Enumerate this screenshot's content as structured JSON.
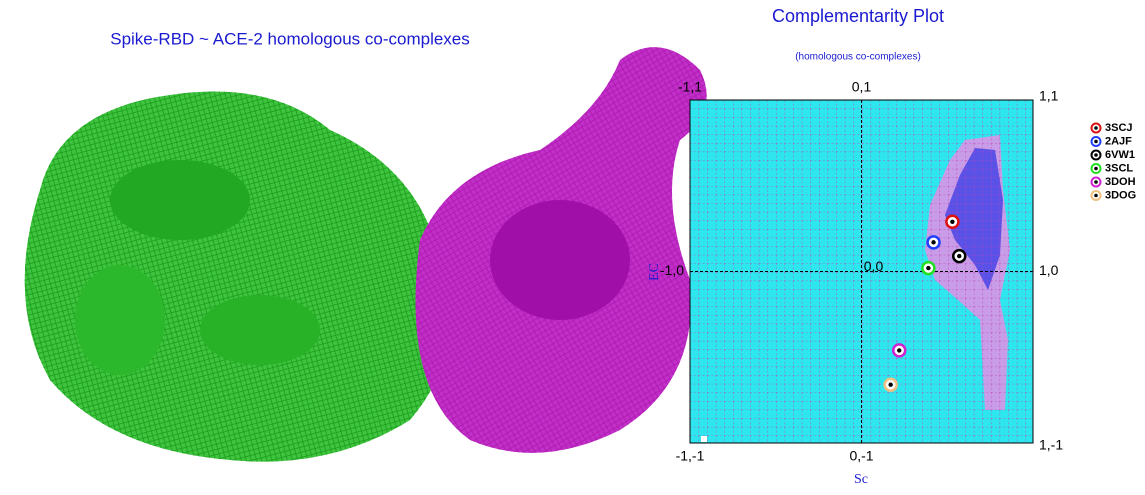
{
  "illustration": {
    "title": "Spike-RBD ~ ACE-2 homologous co-complexes"
  },
  "chart_data": {
    "type": "scatter",
    "title": "Complementarity Plot",
    "subtitle": "(homologous co-complexes)",
    "xlabel": "Sc",
    "ylabel": "EC",
    "xlim": [
      -1,
      1
    ],
    "ylim": [
      -1,
      1
    ],
    "annotations": [
      {
        "x": -1,
        "y": 1,
        "text": "-1,1"
      },
      {
        "x": 0,
        "y": 1,
        "text": "0,1"
      },
      {
        "x": 1,
        "y": 1,
        "text": "1,1"
      },
      {
        "x": -1,
        "y": 0,
        "text": "-1,0"
      },
      {
        "x": 0,
        "y": 0,
        "text": "0,0"
      },
      {
        "x": 1,
        "y": 0,
        "text": "1,0"
      },
      {
        "x": -1,
        "y": -1,
        "text": "-1,-1"
      },
      {
        "x": 0,
        "y": -1,
        "text": "0,-1"
      },
      {
        "x": 1,
        "y": -1,
        "text": "1,-1"
      }
    ],
    "series": [
      {
        "name": "3SCJ",
        "color": "#e01010",
        "x": [
          0.53
        ],
        "values": [
          0.29
        ]
      },
      {
        "name": "2AJF",
        "color": "#2040ff",
        "x": [
          0.42
        ],
        "values": [
          0.17
        ]
      },
      {
        "name": "6VW1",
        "color": "#000000",
        "x": [
          0.57
        ],
        "values": [
          0.09
        ]
      },
      {
        "name": "3SCL",
        "color": "#20e020",
        "x": [
          0.39
        ],
        "values": [
          0.02
        ]
      },
      {
        "name": "3DOH",
        "color": "#d020d0",
        "x": [
          0.22
        ],
        "values": [
          -0.46
        ]
      },
      {
        "name": "3DOG",
        "color": "#f0c080",
        "x": [
          0.17
        ],
        "values": [
          -0.66
        ]
      }
    ]
  }
}
